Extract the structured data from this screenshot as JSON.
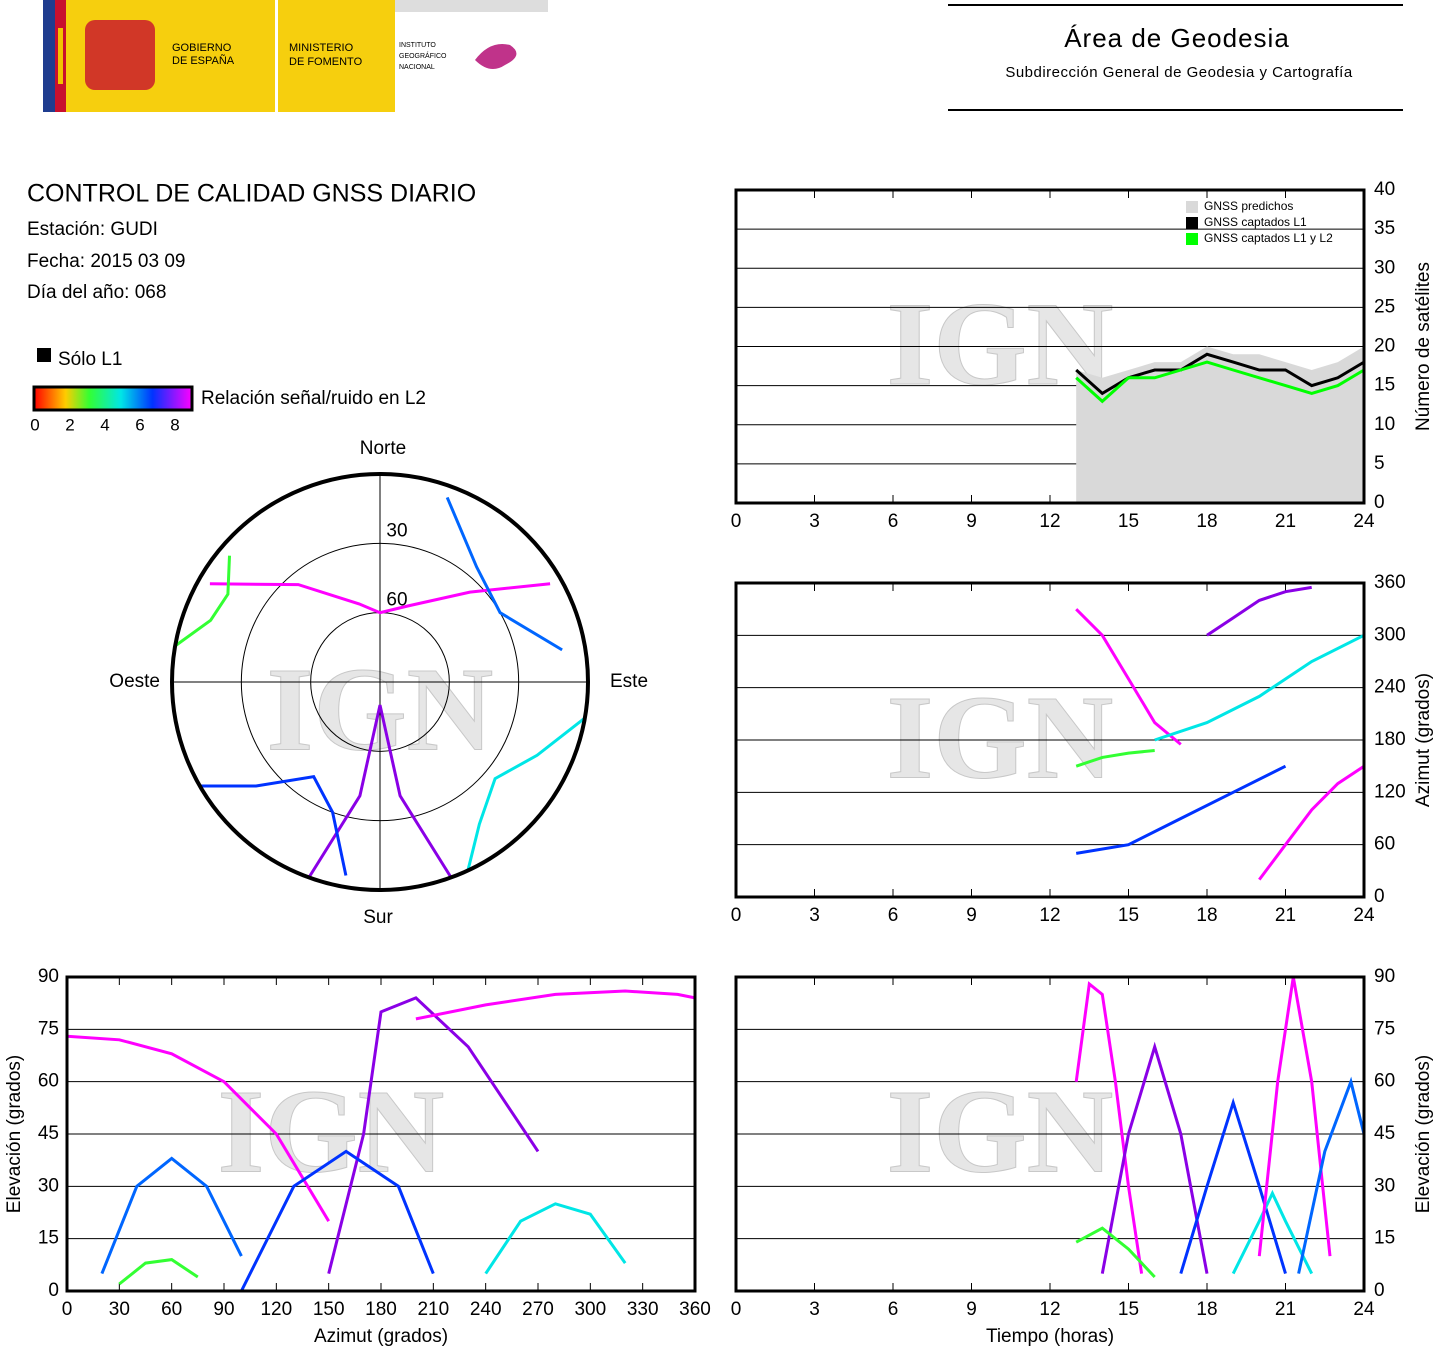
{
  "header": {
    "gov_lines": [
      "GOBIERNO",
      "DE ESPAÑA"
    ],
    "ministry_lines": [
      "MINISTERIO",
      "DE FOMENTO"
    ],
    "institute_lines": [
      "INSTITUTO",
      "GEOGRÁFICO",
      "NACIONAL"
    ],
    "title": "Área de Geodesia",
    "subtitle": "Subdirección General de Geodesia y Cartografía"
  },
  "info": {
    "title": "CONTROL DE CALIDAD GNSS DIARIO",
    "station": "Estación: GUDI",
    "date": "Fecha: 2015 03 09",
    "doy": "Día del año: 068",
    "l1_only": "Sólo L1",
    "colorbar_label": "Relación señal/ruido en L2",
    "colorbar_ticks": [
      0,
      2,
      4,
      6,
      8
    ]
  },
  "chart_data": [
    {
      "type": "polar",
      "directions": {
        "north": "Norte",
        "south": "Sur",
        "east": "Este",
        "west": "Oeste"
      },
      "rings": [
        30,
        60
      ],
      "watermark": "IGN",
      "series": [
        {
          "color": "#ff00ff",
          "azimuth": [
            300,
            320,
            345,
            0,
            20,
            45,
            60
          ],
          "values": [
            5,
            35,
            55,
            60,
            55,
            35,
            5
          ]
        },
        {
          "color": "#8a00e6",
          "azimuth": [
            200,
            190,
            180,
            170,
            160
          ],
          "values": [
            0,
            40,
            80,
            40,
            0
          ]
        },
        {
          "color": "#0033ff",
          "azimuth": [
            240,
            230,
            215,
            200,
            190
          ],
          "values": [
            0,
            20,
            40,
            30,
            5
          ]
        },
        {
          "color": "#00e6e6",
          "azimuth": [
            100,
            115,
            130,
            145,
            155
          ],
          "values": [
            0,
            15,
            25,
            15,
            0
          ]
        },
        {
          "color": "#33ff33",
          "azimuth": [
            280,
            290,
            300,
            310
          ],
          "values": [
            0,
            12,
            14,
            5
          ]
        },
        {
          "color": "#0066ff",
          "azimuth": [
            20,
            40,
            60,
            80
          ],
          "values": [
            5,
            25,
            30,
            10
          ]
        }
      ]
    },
    {
      "type": "line",
      "ylabel": "Número de satélites",
      "watermark": "IGN",
      "xlim": [
        0,
        24
      ],
      "xticks": [
        0,
        3,
        6,
        9,
        12,
        15,
        18,
        21,
        24
      ],
      "ylim": [
        0,
        40
      ],
      "yticks": [
        0,
        5,
        10,
        15,
        20,
        25,
        30,
        35,
        40
      ],
      "grid": true,
      "legend": "upper right",
      "x": [
        13,
        14,
        15,
        16,
        17,
        18,
        19,
        20,
        21,
        22,
        23,
        24
      ],
      "series": [
        {
          "name": "GNSS predichos",
          "color": "#d9d9d9",
          "style": "area",
          "values": [
            17,
            16,
            17,
            18,
            18,
            20,
            19,
            19,
            18,
            17,
            18,
            20
          ]
        },
        {
          "name": "GNSS captados L1",
          "color": "#000000",
          "values": [
            17,
            14,
            16,
            17,
            17,
            19,
            18,
            17,
            17,
            15,
            16,
            18
          ]
        },
        {
          "name": "GNSS captados L1 y L2",
          "color": "#00ff00",
          "values": [
            16,
            13,
            16,
            16,
            17,
            18,
            17,
            16,
            15,
            14,
            15,
            17
          ]
        }
      ]
    },
    {
      "type": "line",
      "ylabel": "Azimut (grados)",
      "watermark": "IGN",
      "xlim": [
        0,
        24
      ],
      "xticks": [
        0,
        3,
        6,
        9,
        12,
        15,
        18,
        21,
        24
      ],
      "ylim": [
        0,
        360
      ],
      "yticks": [
        0,
        60,
        120,
        180,
        240,
        300,
        360
      ],
      "grid": true,
      "series": [
        {
          "color": "#ff00ff",
          "x": [
            13,
            14,
            15,
            16,
            17
          ],
          "values": [
            330,
            300,
            250,
            200,
            175
          ]
        },
        {
          "color": "#0033ff",
          "x": [
            13,
            15,
            17,
            19,
            21
          ],
          "values": [
            50,
            60,
            90,
            120,
            150
          ]
        },
        {
          "color": "#00e6e6",
          "x": [
            16,
            18,
            20,
            22,
            24
          ],
          "values": [
            180,
            200,
            230,
            270,
            300
          ]
        },
        {
          "color": "#8a00e6",
          "x": [
            18,
            19,
            20,
            21,
            22
          ],
          "values": [
            300,
            320,
            340,
            350,
            355
          ]
        },
        {
          "color": "#33ff33",
          "x": [
            13,
            14,
            15,
            16
          ],
          "values": [
            150,
            160,
            165,
            168
          ]
        },
        {
          "color": "#ff00ff",
          "x": [
            20,
            21,
            22,
            23,
            24
          ],
          "values": [
            20,
            60,
            100,
            130,
            150
          ]
        }
      ]
    },
    {
      "type": "line",
      "xlabel": "Azimut (grados)",
      "ylabel": "Elevación (grados)",
      "yside": "left",
      "watermark": "IGN",
      "xlim": [
        0,
        360
      ],
      "xticks": [
        0,
        30,
        60,
        90,
        120,
        150,
        180,
        210,
        240,
        270,
        300,
        330,
        360
      ],
      "ylim": [
        0,
        90
      ],
      "yticks": [
        0,
        15,
        30,
        45,
        60,
        75,
        90
      ],
      "grid": true,
      "series": [
        {
          "color": "#ff00ff",
          "x": [
            0,
            30,
            60,
            90,
            120,
            150
          ],
          "values": [
            73,
            72,
            68,
            60,
            45,
            20
          ]
        },
        {
          "color": "#8a00e6",
          "x": [
            150,
            170,
            180,
            200,
            230,
            270
          ],
          "values": [
            5,
            45,
            80,
            84,
            70,
            40
          ]
        },
        {
          "color": "#0033ff",
          "x": [
            100,
            130,
            160,
            190,
            210
          ],
          "values": [
            0,
            30,
            40,
            30,
            5
          ]
        },
        {
          "color": "#00e6e6",
          "x": [
            240,
            260,
            280,
            300,
            320
          ],
          "values": [
            5,
            20,
            25,
            22,
            8
          ]
        },
        {
          "color": "#33ff33",
          "x": [
            30,
            45,
            60,
            75
          ],
          "values": [
            2,
            8,
            9,
            4
          ]
        },
        {
          "color": "#ff00ff",
          "x": [
            200,
            240,
            280,
            320,
            350,
            360
          ],
          "values": [
            78,
            82,
            85,
            86,
            85,
            84
          ]
        },
        {
          "color": "#0066ff",
          "x": [
            20,
            40,
            60,
            80,
            100
          ],
          "values": [
            5,
            30,
            38,
            30,
            10
          ]
        }
      ]
    },
    {
      "type": "line",
      "xlabel": "Tiempo (horas)",
      "ylabel": "Elevación (grados)",
      "watermark": "IGN",
      "xlim": [
        0,
        24
      ],
      "xticks": [
        0,
        3,
        6,
        9,
        12,
        15,
        18,
        21,
        24
      ],
      "ylim": [
        0,
        90
      ],
      "yticks": [
        0,
        15,
        30,
        45,
        60,
        75,
        90
      ],
      "grid": true,
      "series": [
        {
          "color": "#ff00ff",
          "x": [
            13,
            13.5,
            14,
            14.5,
            15,
            15.5
          ],
          "values": [
            60,
            88,
            85,
            60,
            30,
            5
          ]
        },
        {
          "color": "#8a00e6",
          "x": [
            14,
            15,
            16,
            17,
            18
          ],
          "values": [
            5,
            45,
            70,
            45,
            5
          ]
        },
        {
          "color": "#0033ff",
          "x": [
            17,
            18,
            19,
            20,
            21
          ],
          "values": [
            5,
            30,
            54,
            30,
            5
          ]
        },
        {
          "color": "#00e6e6",
          "x": [
            19,
            20,
            20.5,
            21,
            22
          ],
          "values": [
            5,
            20,
            28,
            20,
            5
          ]
        },
        {
          "color": "#ff00ff",
          "x": [
            20,
            20.7,
            21.3,
            22,
            22.7
          ],
          "values": [
            10,
            60,
            90,
            60,
            10
          ]
        },
        {
          "color": "#33ff33",
          "x": [
            13,
            14,
            15,
            16
          ],
          "values": [
            14,
            18,
            12,
            4
          ]
        },
        {
          "color": "#0066ff",
          "x": [
            21.5,
            22.5,
            23.5,
            24
          ],
          "values": [
            5,
            40,
            60,
            45
          ]
        }
      ]
    }
  ]
}
